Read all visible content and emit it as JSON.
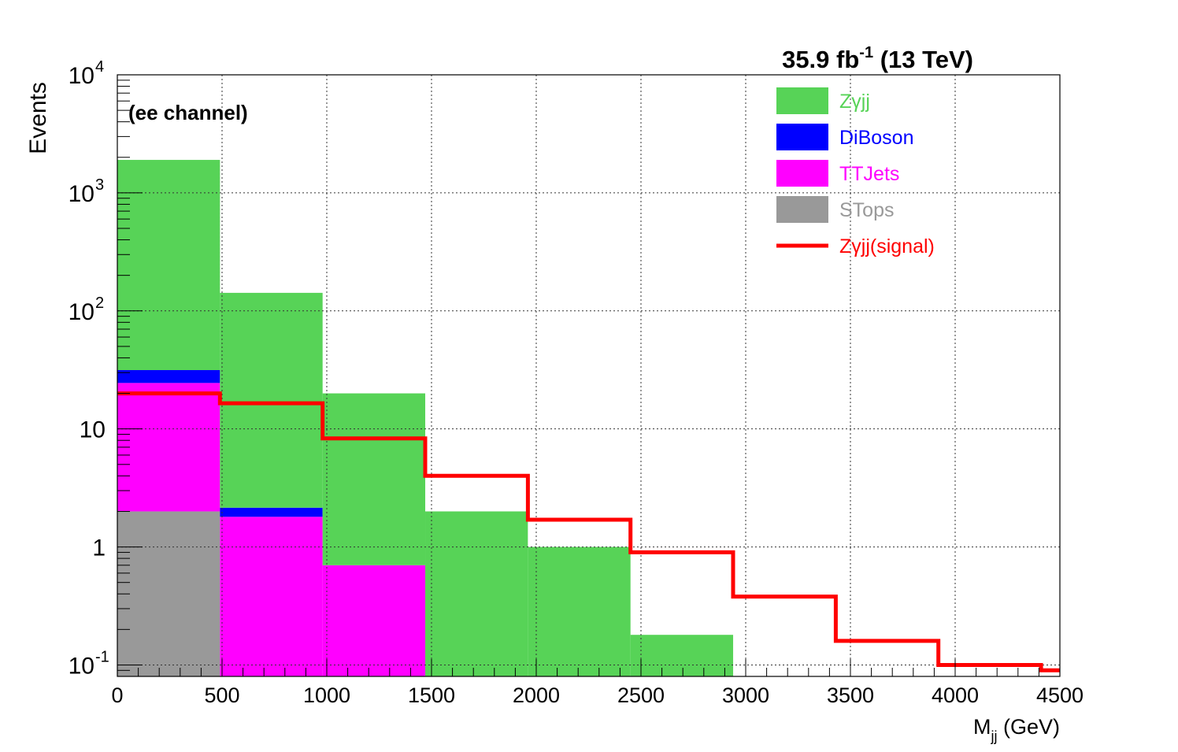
{
  "chart_data": {
    "type": "bar",
    "stacked": true,
    "title": "35.9 fb-1 (13 TeV)",
    "title_parts": {
      "main": "35.9 fb",
      "sup": "-1",
      "rest": " (13 TeV)"
    },
    "annotation": "(ee channel)",
    "xlabel_parts": {
      "main": "M",
      "sub": "jj",
      "rest": " (GeV)"
    },
    "ylabel": "Events",
    "xlim": [
      0,
      4500
    ],
    "ylim": [
      0.08,
      10000
    ],
    "yscale": "log",
    "grid": true,
    "legend_position": "top-right",
    "bin_edges": [
      0,
      490,
      980,
      1470,
      1960,
      2450,
      2940,
      3430,
      3920,
      4410,
      4900
    ],
    "x_ticks": [
      "0",
      "500",
      "1000",
      "1500",
      "2000",
      "2500",
      "3000",
      "3500",
      "4000",
      "4500"
    ],
    "x_tick_values": [
      0,
      500,
      1000,
      1500,
      2000,
      2500,
      3000,
      3500,
      4000,
      4500
    ],
    "y_ticks": [
      {
        "value": 0.1,
        "base": "10",
        "sup": "-1"
      },
      {
        "value": 1,
        "base": "1",
        "sup": ""
      },
      {
        "value": 10,
        "base": "10",
        "sup": ""
      },
      {
        "value": 100,
        "base": "10",
        "sup": "2"
      },
      {
        "value": 1000,
        "base": "10",
        "sup": "3"
      },
      {
        "value": 10000,
        "base": "10",
        "sup": "4"
      }
    ],
    "series": [
      {
        "name": "STops",
        "color": "#999999",
        "values": [
          2.0,
          0,
          0,
          0,
          0,
          0,
          0,
          0,
          0,
          0
        ]
      },
      {
        "name": "TTJets",
        "color": "#ff00ff",
        "values": [
          22.5,
          1.8,
          0.7,
          0,
          0,
          0,
          0,
          0,
          0,
          0
        ]
      },
      {
        "name": "DiBoson",
        "color": "#0000ff",
        "values": [
          7.0,
          0.35,
          0,
          0,
          0,
          0,
          0,
          0,
          0,
          0
        ]
      },
      {
        "name": "Zγjj",
        "color": "#57d357",
        "values": [
          1870,
          140,
          19.3,
          2.0,
          1.0,
          0.18,
          0,
          0,
          0,
          0
        ]
      }
    ],
    "signal": {
      "name": "Zγjj(signal)",
      "color": "#ff0000",
      "values": [
        20.0,
        16.5,
        8.3,
        4.0,
        1.7,
        0.9,
        0.38,
        0.16,
        0.1,
        0.09
      ]
    },
    "legend": [
      {
        "label": "Zγjj",
        "color": "#57d357",
        "kind": "box"
      },
      {
        "label": "DiBoson",
        "color": "#0000ff",
        "kind": "box"
      },
      {
        "label": "TTJets",
        "color": "#ff00ff",
        "kind": "box"
      },
      {
        "label": "STops",
        "color": "#999999",
        "kind": "box"
      },
      {
        "label": "Zγjj(signal)",
        "color": "#ff0000",
        "kind": "line"
      }
    ]
  }
}
